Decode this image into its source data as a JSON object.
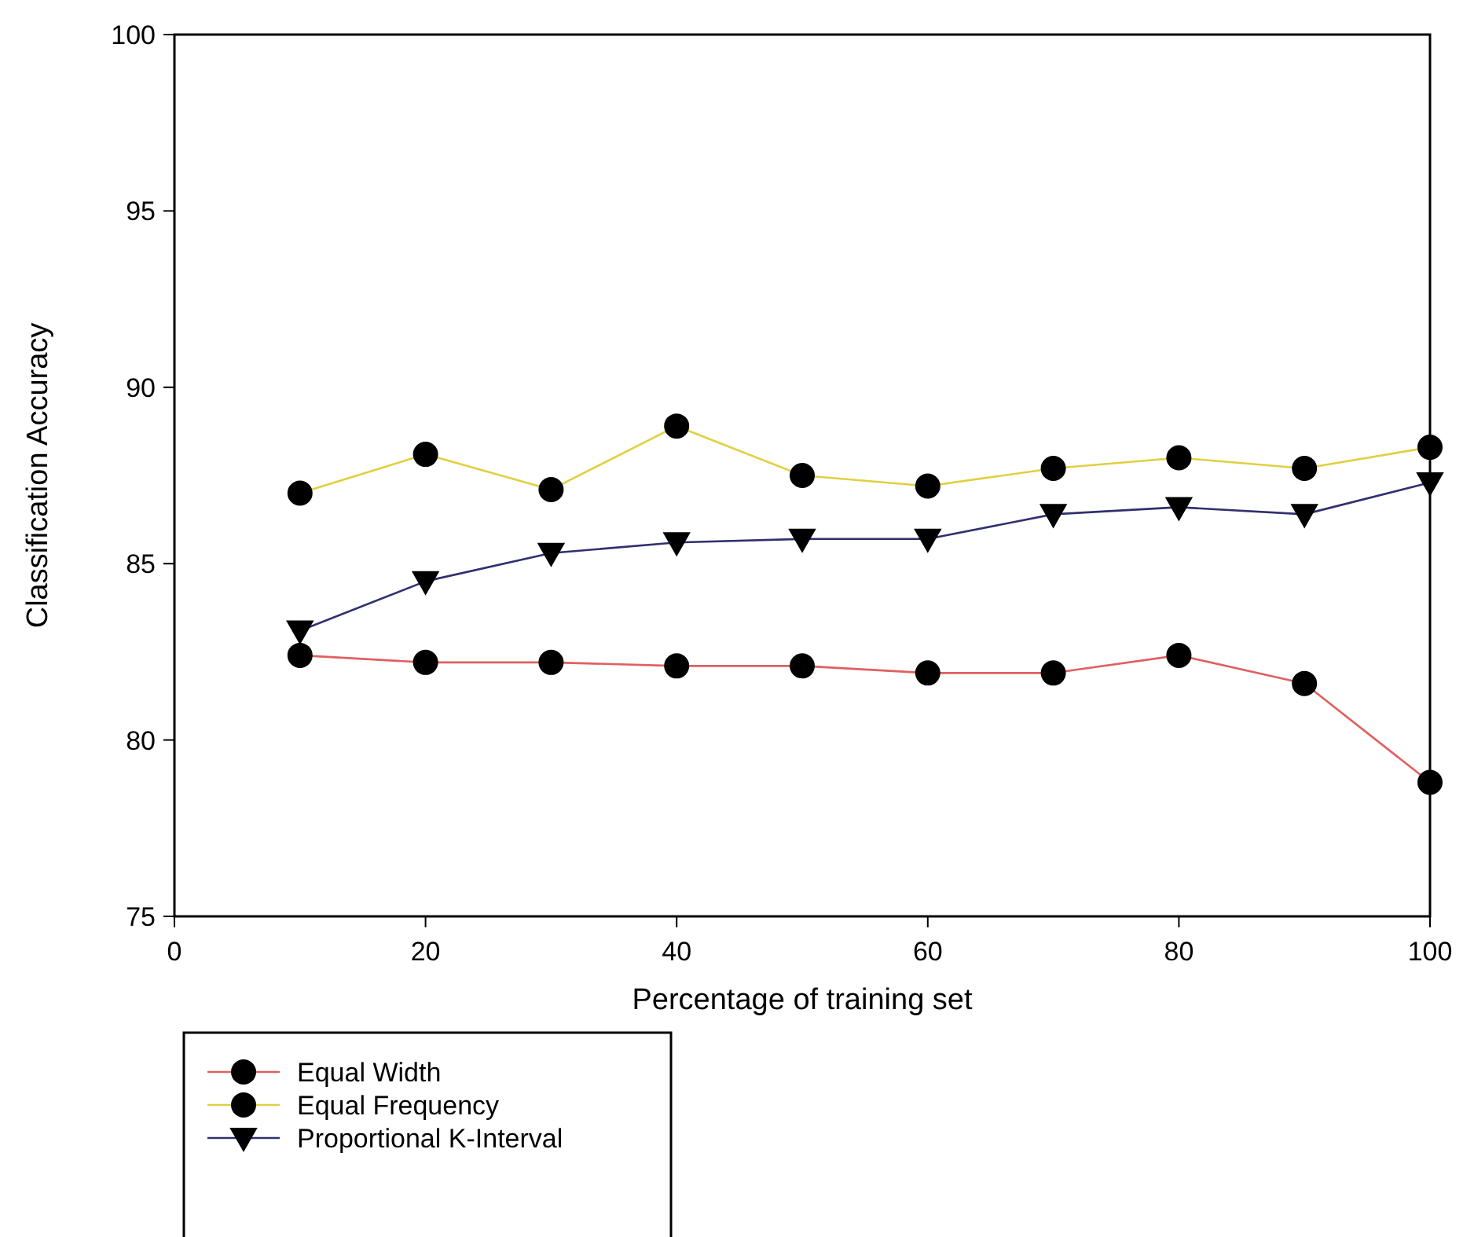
{
  "chart_data": {
    "type": "line",
    "xlabel": "Percentage of training set",
    "ylabel": "Classification Accuracy",
    "x": [
      10,
      20,
      30,
      40,
      50,
      60,
      70,
      80,
      90,
      100
    ],
    "xlim": [
      0,
      100
    ],
    "xticks": [
      0,
      20,
      40,
      60,
      80,
      100
    ],
    "ylim": [
      75,
      100
    ],
    "yticks": [
      75,
      80,
      85,
      90,
      95,
      100
    ],
    "grid": false,
    "legend": "bottom left",
    "series": [
      {
        "name": "Equal Width",
        "color": "#e06060",
        "marker": "circle",
        "values": [
          82.4,
          82.2,
          82.2,
          82.1,
          82.1,
          81.9,
          81.9,
          82.4,
          81.6,
          78.8
        ]
      },
      {
        "name": "Equal Frequency",
        "color": "#e0d040",
        "marker": "circle",
        "values": [
          87.0,
          88.1,
          87.1,
          88.9,
          87.5,
          87.2,
          87.7,
          88.0,
          87.7,
          88.3
        ]
      },
      {
        "name": "Proportional K-Interval",
        "color": "#303070",
        "marker": "triangle",
        "values": [
          83.1,
          84.5,
          85.3,
          85.6,
          85.7,
          85.7,
          86.4,
          86.6,
          86.4,
          87.3
        ]
      }
    ]
  }
}
